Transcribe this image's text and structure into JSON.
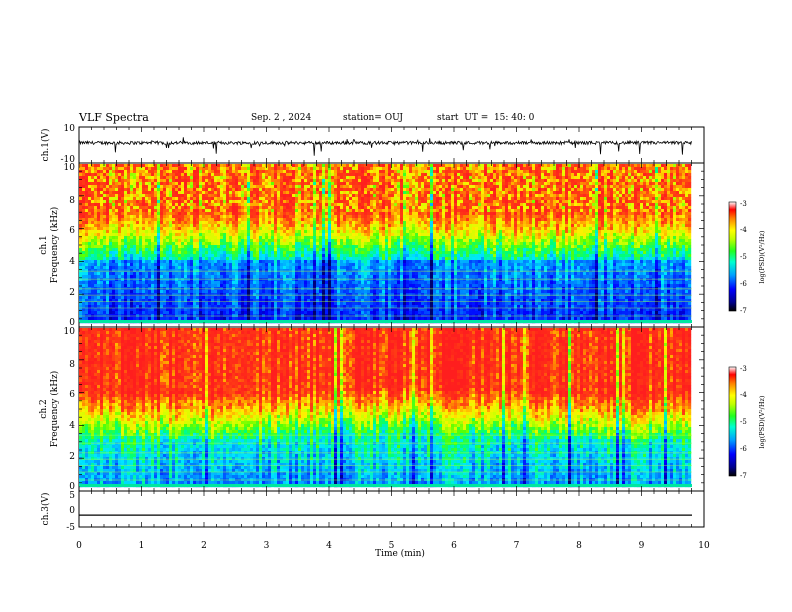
{
  "header": {
    "title": "VLF Spectra",
    "date": "Sep. 2 , 2024",
    "station": "station= OUJ",
    "start_ut": "start  UT =  15: 40: 0"
  },
  "colors": {
    "spectrogram_scale": [
      "#00007a",
      "#0000ff",
      "#0060ff",
      "#00c8ff",
      "#00ff90",
      "#40ff00",
      "#c8ff00",
      "#ffff00",
      "#ffb000",
      "#ff6000",
      "#ff1a1a"
    ]
  },
  "chart_data": [
    {
      "type": "line",
      "ylabel": "ch.1(V)",
      "ylim": [
        -10,
        10
      ],
      "y_ticks": [
        "10",
        "-10"
      ],
      "xlim": [
        0,
        10
      ],
      "baseline_value": 0
    },
    {
      "type": "heatmap",
      "ylabel": "ch.1\nFrequency (kHz)",
      "ylabel_line1": "ch.1",
      "ylabel_line2": "Frequency  (kHz)",
      "ylim": [
        0,
        10
      ],
      "y_ticks": [
        "0",
        "2",
        "4",
        "6",
        "8",
        "10"
      ],
      "xlim": [
        0,
        9.85
      ],
      "colorbar": {
        "label": "log(PSD)(V²/Hz)",
        "range": [
          -7,
          -3
        ],
        "ticks": [
          "-3",
          "-4",
          "-5",
          "-6",
          "-7"
        ]
      }
    },
    {
      "type": "heatmap",
      "ylabel_line1": "ch.2",
      "ylabel_line2": "Frequency  (kHz)",
      "ylim": [
        0,
        10
      ],
      "y_ticks": [
        "0",
        "2",
        "4",
        "6",
        "8",
        "10"
      ],
      "xlim": [
        0,
        9.85
      ],
      "colorbar": {
        "label": "log(PSD)(V²/Hz)",
        "range": [
          -7,
          -3
        ],
        "ticks": [
          "-3",
          "-4",
          "-5",
          "-6",
          "-7"
        ]
      }
    },
    {
      "type": "line",
      "ylabel": "ch.3(V)",
      "ylim": [
        -5,
        5
      ],
      "y_ticks": [
        "5",
        "0",
        "-5"
      ],
      "xlim": [
        0,
        10
      ],
      "baseline_value": -1.7
    }
  ],
  "x_axis": {
    "label": "Time  (min)",
    "ticks": [
      "0",
      "1",
      "2",
      "3",
      "4",
      "5",
      "6",
      "7",
      "8",
      "9",
      "10"
    ]
  }
}
